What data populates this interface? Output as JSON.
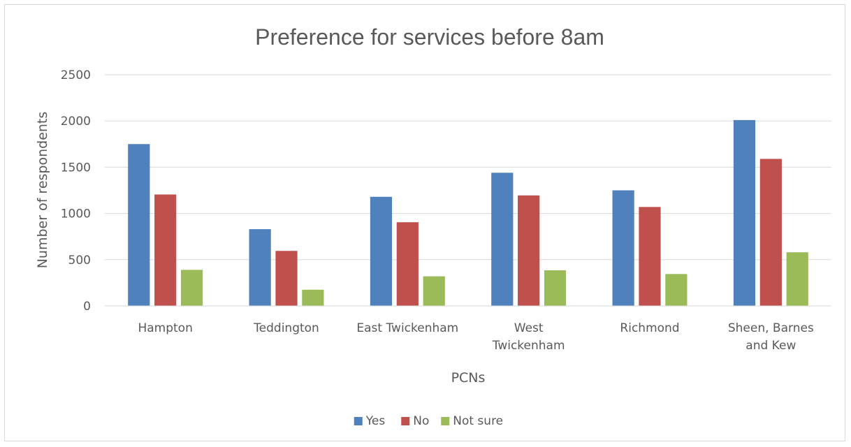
{
  "chart_data": {
    "type": "bar",
    "title": "Preference for services before 8am",
    "xlabel": "PCNs",
    "ylabel": "Number of respondents",
    "categories": [
      [
        "Hampton"
      ],
      [
        "Teddington"
      ],
      [
        "East Twickenham"
      ],
      [
        "West",
        "Twickenham"
      ],
      [
        "Richmond"
      ],
      [
        "Sheen, Barnes",
        "and Kew"
      ]
    ],
    "series": [
      {
        "name": "Yes",
        "color": "#4f81bd",
        "values": [
          1750,
          830,
          1180,
          1440,
          1250,
          2010
        ]
      },
      {
        "name": "No",
        "color": "#c0504d",
        "values": [
          1205,
          595,
          905,
          1195,
          1070,
          1590
        ]
      },
      {
        "name": "Not sure",
        "color": "#9bbb59",
        "values": [
          390,
          175,
          320,
          385,
          345,
          580
        ]
      }
    ],
    "ylim": [
      0,
      2500
    ],
    "yticks": [
      0,
      500,
      1000,
      1500,
      2000,
      2500
    ],
    "grid": true,
    "legend_position": "bottom"
  }
}
